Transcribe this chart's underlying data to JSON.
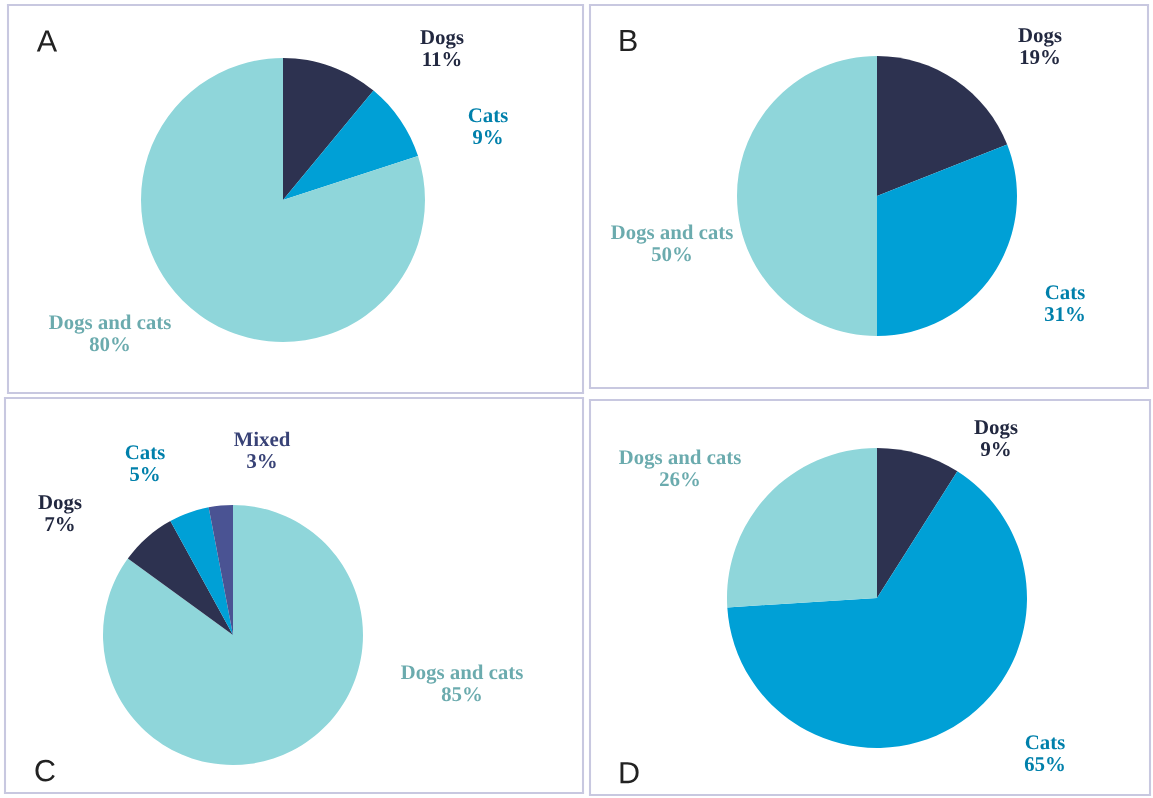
{
  "chart_data": [
    {
      "type": "pie",
      "title": "A",
      "categories": [
        "Dogs",
        "Cats",
        "Dogs and cats"
      ],
      "values": [
        11,
        9,
        80
      ],
      "colors": [
        "#2d3250",
        "#00a0d6",
        "#8fd6da"
      ],
      "value_labels": [
        "11%",
        "9%",
        "80%"
      ]
    },
    {
      "type": "pie",
      "title": "B",
      "categories": [
        "Dogs",
        "Cats",
        "Dogs and cats"
      ],
      "values": [
        19,
        31,
        50
      ],
      "colors": [
        "#2d3250",
        "#00a0d6",
        "#8fd6da"
      ],
      "value_labels": [
        "19%",
        "31%",
        "50%"
      ]
    },
    {
      "type": "pie",
      "title": "C",
      "categories": [
        "Dogs and cats",
        "Dogs",
        "Cats",
        "Mixed"
      ],
      "values": [
        85,
        7,
        5,
        3
      ],
      "colors": [
        "#8fd6da",
        "#2d3250",
        "#00a0d6",
        "#4a5393"
      ],
      "value_labels": [
        "85%",
        "7%",
        "5%",
        "3%"
      ]
    },
    {
      "type": "pie",
      "title": "D",
      "categories": [
        "Dogs",
        "Cats",
        "Dogs and cats"
      ],
      "values": [
        9,
        65,
        26
      ],
      "colors": [
        "#2d3250",
        "#00a0d6",
        "#8fd6da"
      ],
      "value_labels": [
        "9%",
        "65%",
        "26%"
      ]
    }
  ]
}
